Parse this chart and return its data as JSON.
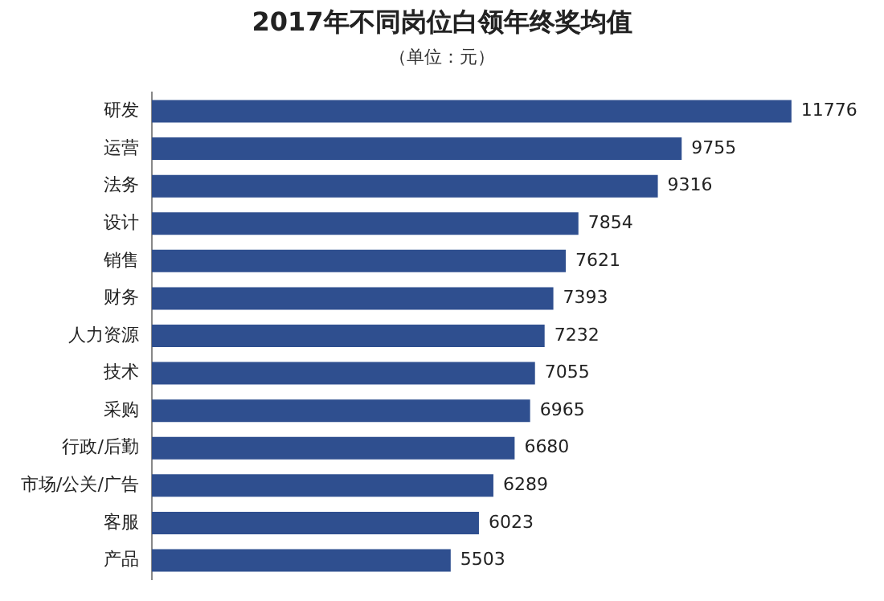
{
  "chart_data": {
    "type": "bar",
    "orientation": "horizontal",
    "title": "2017年不同岗位白领年终奖均值",
    "subtitle": "（单位：元）",
    "categories": [
      "研发",
      "运营",
      "法务",
      "设计",
      "销售",
      "财务",
      "人力资源",
      "技术",
      "采购",
      "行政/后勤",
      "市场/公关/广告",
      "客服",
      "产品"
    ],
    "values": [
      11776,
      9755,
      9316,
      7854,
      7621,
      7393,
      7232,
      7055,
      6965,
      6680,
      6289,
      6023,
      5503
    ],
    "color": "#2f4f8f",
    "tick_labels": "y",
    "grid": false,
    "legend": false,
    "data_labels": true
  }
}
